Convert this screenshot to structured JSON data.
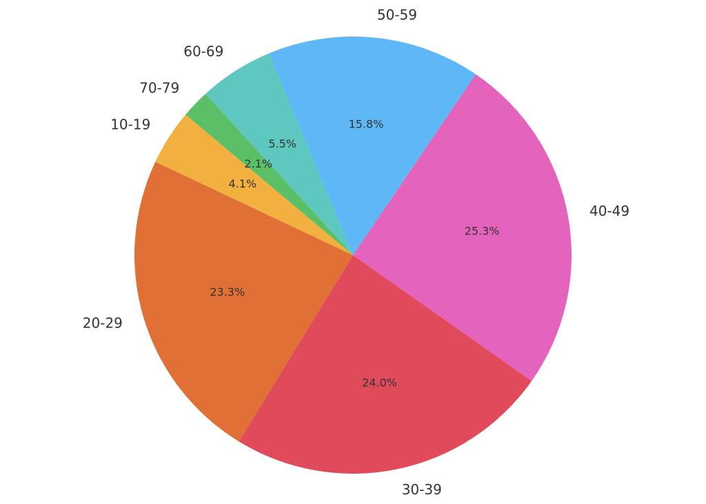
{
  "chart_data": {
    "type": "pie",
    "categories": [
      "10-19",
      "20-29",
      "30-39",
      "40-49",
      "50-59",
      "60-69",
      "70-79"
    ],
    "values": [
      4.1,
      23.3,
      24.0,
      25.3,
      15.8,
      5.5,
      2.1
    ],
    "value_labels": [
      "4.1%",
      "23.3%",
      "24.0%",
      "25.3%",
      "15.8%",
      "5.5%",
      "2.1%"
    ],
    "colors": [
      "#f2b13f",
      "#e07035",
      "#e04a5a",
      "#e463bd",
      "#5db8f5",
      "#5ec8c0",
      "#5abf66"
    ]
  }
}
